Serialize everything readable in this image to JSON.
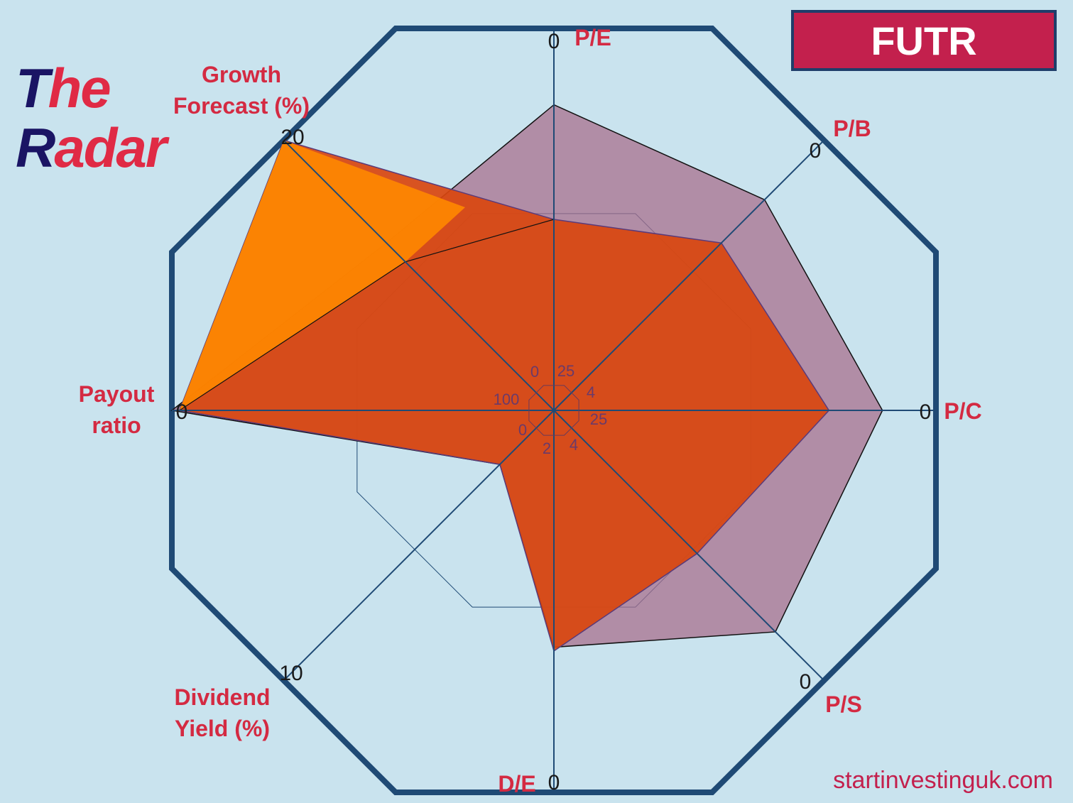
{
  "brand": {
    "line1_a": "T",
    "line1_b": "he",
    "line2_a": "R",
    "line2_b": "adar"
  },
  "ticker": "FUTR",
  "site": "startinvestinguk.com",
  "colors": {
    "background": "#c9e3ee",
    "frame": "#1f4a75",
    "label": "#d42a42",
    "company_fill": "#d9460f",
    "sector_fill": "#a8708e",
    "growth_fill": "#ff8800"
  },
  "chart_data": {
    "type": "radar",
    "axes": [
      {
        "label": "P/E",
        "outer_tick": "0",
        "inner_tick": "25"
      },
      {
        "label": "P/B",
        "outer_tick": "0",
        "inner_tick": "4"
      },
      {
        "label": "P/C",
        "outer_tick": "0",
        "inner_tick": "25"
      },
      {
        "label": "P/S",
        "outer_tick": "0",
        "inner_tick": "4"
      },
      {
        "label": "D/E",
        "outer_tick": "0",
        "inner_tick": "2"
      },
      {
        "label": "Dividend Yield (%)",
        "outer_tick": "10",
        "inner_tick": "0"
      },
      {
        "label": "Payout ratio",
        "outer_tick": "0",
        "inner_tick": "100"
      },
      {
        "label": "Growth Forecast (%)",
        "outer_tick": "20",
        "inner_tick": "0"
      }
    ],
    "scale_note": "values are fraction of radius from centre (0 = inner tick, 1 = outer tick)",
    "series": [
      {
        "values": [
          0.8,
          0.78,
          0.86,
          0.82,
          0.62,
          0.2,
          1.0,
          0.62
        ]
      },
      {
        "values": [
          0.5,
          0.62,
          0.72,
          0.53,
          0.63,
          0.2,
          0.98,
          1.0
        ]
      }
    ],
    "grid": true
  }
}
